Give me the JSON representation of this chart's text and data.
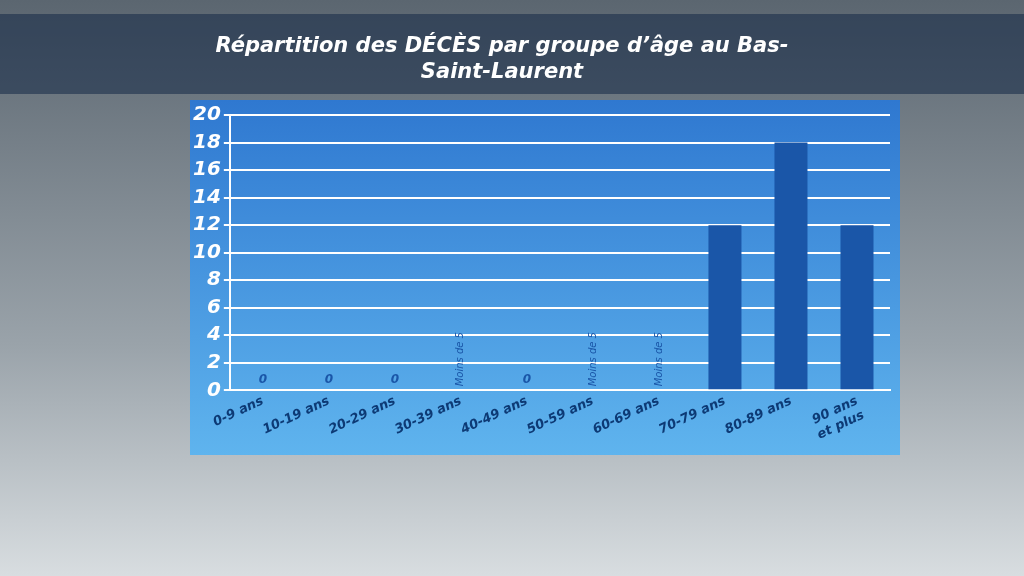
{
  "chart_data": {
    "type": "bar",
    "title": "Répartition des DÉCÈS par groupe d’âge au Bas-Saint-Laurent",
    "categories": [
      "0-9 ans",
      "10-19 ans",
      "20-29 ans",
      "30-39 ans",
      "40-49 ans",
      "50-59 ans",
      "60-69 ans",
      "70-79 ans",
      "80-89 ans",
      "90 ans\net plus"
    ],
    "values": [
      0,
      0,
      0,
      null,
      0,
      null,
      null,
      12,
      18,
      12
    ],
    "value_labels": [
      "0",
      "0",
      "0",
      "Moins de 5",
      "0",
      "Moins de 5",
      "Moins de 5",
      null,
      null,
      null
    ],
    "color": "#1a56a8",
    "ylim": [
      0,
      20
    ],
    "yticks": [
      0,
      2,
      4,
      6,
      8,
      10,
      12,
      14,
      16,
      18,
      20
    ],
    "grid": "y"
  }
}
